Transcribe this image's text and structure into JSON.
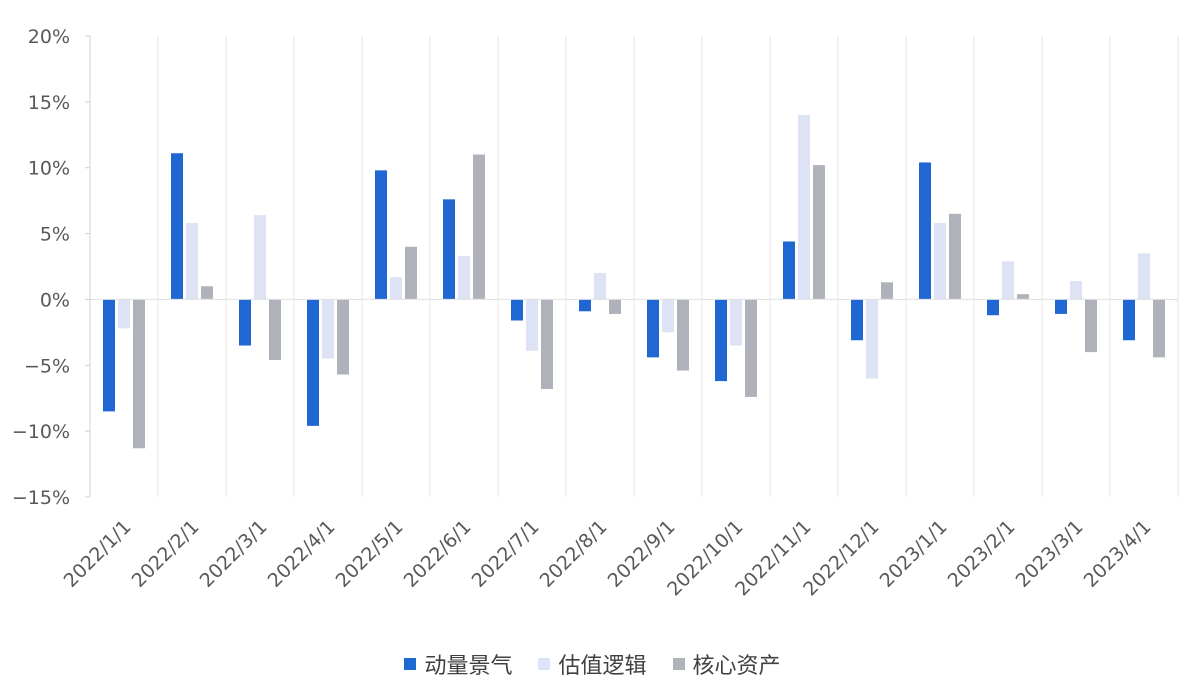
{
  "chart_data": {
    "type": "bar",
    "categories": [
      "2022/1/1",
      "2022/2/1",
      "2022/3/1",
      "2022/4/1",
      "2022/5/1",
      "2022/6/1",
      "2022/7/1",
      "2022/8/1",
      "2022/9/1",
      "2022/10/1",
      "2022/11/1",
      "2022/12/1",
      "2023/1/1",
      "2023/2/1",
      "2023/3/1",
      "2023/4/1"
    ],
    "series": [
      {
        "name": "动量景气",
        "color": "#1f67d2",
        "values": [
          -8.5,
          11.1,
          -3.5,
          -9.6,
          9.8,
          7.6,
          -1.6,
          -0.9,
          -4.4,
          -6.2,
          4.4,
          -3.1,
          10.4,
          -1.2,
          -1.1,
          -3.1
        ]
      },
      {
        "name": "估值逻辑",
        "color": "#dde3f5",
        "values": [
          -2.2,
          5.8,
          6.4,
          -4.5,
          1.7,
          3.3,
          -3.9,
          2.0,
          -2.5,
          -3.5,
          14.0,
          -6.0,
          5.8,
          2.9,
          1.4,
          3.5
        ]
      },
      {
        "name": "核心资产",
        "color": "#afb2ba",
        "values": [
          -11.3,
          1.0,
          -4.6,
          -5.7,
          4.0,
          11.0,
          -6.8,
          -1.1,
          -5.4,
          -7.4,
          10.2,
          1.3,
          6.5,
          0.4,
          -4.0,
          -4.4
        ]
      }
    ],
    "ylim": [
      -15,
      20
    ],
    "yticks": [
      -15,
      -10,
      -5,
      0,
      5,
      10,
      15,
      20
    ],
    "ytick_labels": [
      "−15%",
      "−10%",
      "−5%",
      "0%",
      "5%",
      "10%",
      "15%",
      "20%"
    ],
    "grid": "vertical",
    "legend": "bottom"
  }
}
